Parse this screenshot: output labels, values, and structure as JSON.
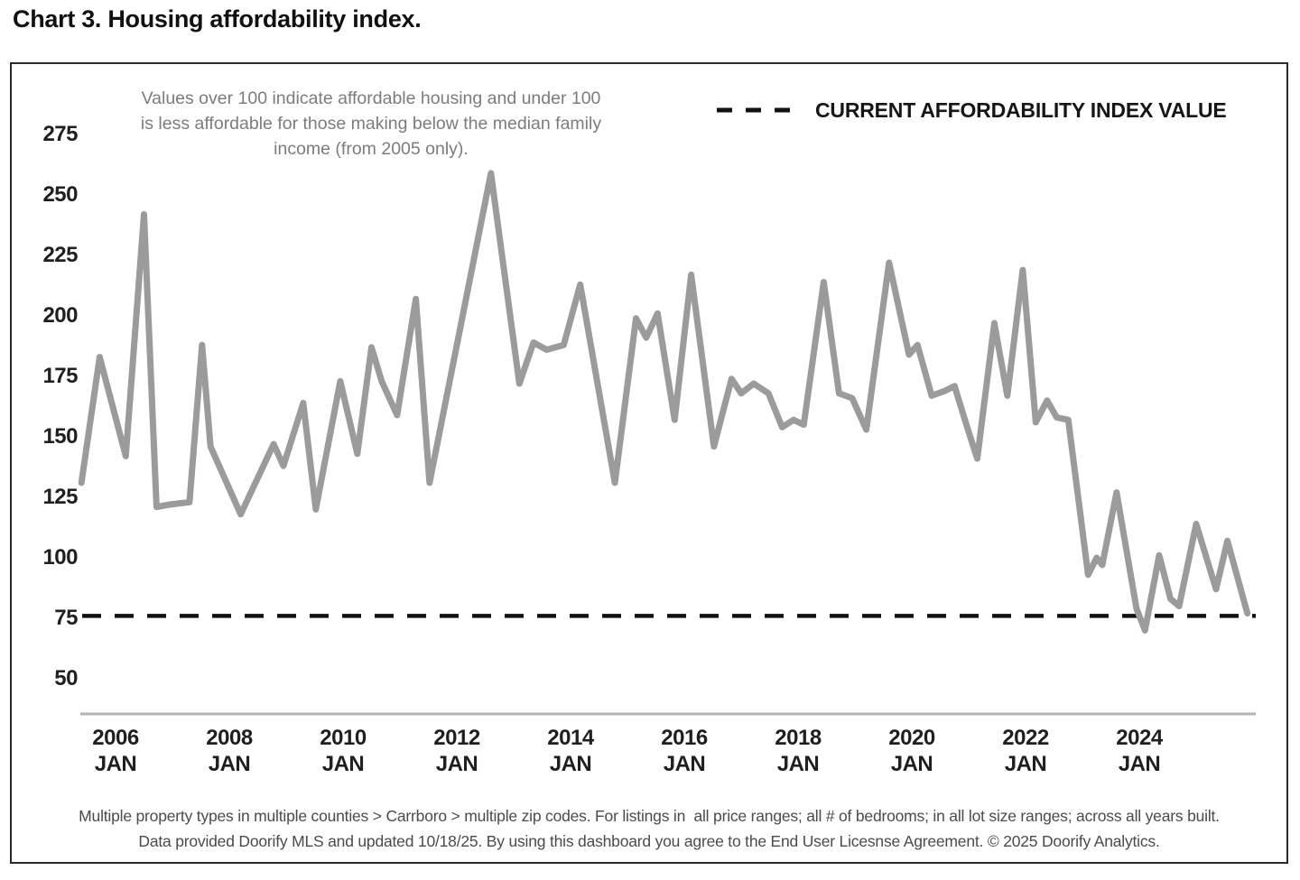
{
  "title": "Chart 3. Housing affordability index.",
  "annotation": {
    "line1": "Values over 100 indicate affordable housing and under 100",
    "line2": "is less affordable for those making below the median family",
    "line3": "income (from 2005 only)."
  },
  "legend": {
    "label": "CURRENT AFFORDABILITY INDEX VALUE"
  },
  "footer": {
    "line1": "Multiple property types in multiple counties > Carrboro > multiple zip codes. For listings in  all price ranges; all # of bedrooms; in all lot size ranges; across all years built.",
    "line2": "Data provided Doorify MLS and updated 10/18/25. By using this dashboard you agree to the End User Licesnse Agreement. © 2025 Doorify Analytics."
  },
  "colors": {
    "series_line": "#9b9b9b",
    "reference_line": "#111111",
    "axis_line": "#b3b3b3",
    "tick_text": "#1f1f1f"
  },
  "chart_data": {
    "type": "line",
    "title": "Chart 3. Housing affordability index.",
    "xlabel": "",
    "ylabel": "Housing affordability index",
    "grid": false,
    "legend_position": "top-right",
    "ylim": [
      40,
      290
    ],
    "x_range_years": [
      2005.4,
      2025.9
    ],
    "y_ticks": [
      275,
      250,
      225,
      200,
      175,
      150,
      125,
      100,
      75,
      50
    ],
    "x_ticks": [
      {
        "year": "2006",
        "month": "JAN"
      },
      {
        "year": "2008",
        "month": "JAN"
      },
      {
        "year": "2010",
        "month": "JAN"
      },
      {
        "year": "2012",
        "month": "JAN"
      },
      {
        "year": "2014",
        "month": "JAN"
      },
      {
        "year": "2016",
        "month": "JAN"
      },
      {
        "year": "2018",
        "month": "JAN"
      },
      {
        "year": "2020",
        "month": "JAN"
      },
      {
        "year": "2022",
        "month": "JAN"
      },
      {
        "year": "2024",
        "month": "JAN"
      }
    ],
    "reference_line": {
      "label": "CURRENT AFFORDABILITY INDEX VALUE",
      "value": 76,
      "style": "dashed"
    },
    "series": [
      {
        "name": "Housing affordability index",
        "points": [
          [
            2005.4,
            131
          ],
          [
            2005.72,
            183
          ],
          [
            2006.18,
            142
          ],
          [
            2006.5,
            242
          ],
          [
            2006.72,
            121
          ],
          [
            2006.95,
            122
          ],
          [
            2007.3,
            123
          ],
          [
            2007.52,
            188
          ],
          [
            2007.67,
            146
          ],
          [
            2008.2,
            118
          ],
          [
            2008.78,
            147
          ],
          [
            2008.95,
            138
          ],
          [
            2009.3,
            164
          ],
          [
            2009.52,
            120
          ],
          [
            2009.95,
            173
          ],
          [
            2010.25,
            143
          ],
          [
            2010.5,
            187
          ],
          [
            2010.68,
            173
          ],
          [
            2010.95,
            159
          ],
          [
            2011.28,
            207
          ],
          [
            2011.52,
            131
          ],
          [
            2012.6,
            259
          ],
          [
            2013.1,
            172
          ],
          [
            2013.35,
            189
          ],
          [
            2013.58,
            186
          ],
          [
            2013.88,
            188
          ],
          [
            2014.17,
            213
          ],
          [
            2014.78,
            131
          ],
          [
            2015.15,
            199
          ],
          [
            2015.33,
            191
          ],
          [
            2015.53,
            201
          ],
          [
            2015.83,
            157
          ],
          [
            2016.12,
            217
          ],
          [
            2016.52,
            146
          ],
          [
            2016.83,
            174
          ],
          [
            2017.0,
            168
          ],
          [
            2017.22,
            172
          ],
          [
            2017.48,
            168
          ],
          [
            2017.72,
            154
          ],
          [
            2017.92,
            157
          ],
          [
            2018.1,
            155
          ],
          [
            2018.45,
            214
          ],
          [
            2018.72,
            168
          ],
          [
            2018.95,
            166
          ],
          [
            2019.2,
            153
          ],
          [
            2019.6,
            222
          ],
          [
            2019.95,
            184
          ],
          [
            2020.1,
            188
          ],
          [
            2020.35,
            167
          ],
          [
            2020.58,
            169
          ],
          [
            2020.75,
            171
          ],
          [
            2021.0,
            152
          ],
          [
            2021.15,
            141
          ],
          [
            2021.45,
            197
          ],
          [
            2021.68,
            167
          ],
          [
            2021.95,
            219
          ],
          [
            2022.18,
            156
          ],
          [
            2022.38,
            165
          ],
          [
            2022.55,
            158
          ],
          [
            2022.75,
            157
          ],
          [
            2023.1,
            93
          ],
          [
            2023.25,
            100
          ],
          [
            2023.35,
            97
          ],
          [
            2023.6,
            127
          ],
          [
            2023.95,
            79
          ],
          [
            2024.1,
            70
          ],
          [
            2024.35,
            101
          ],
          [
            2024.55,
            83
          ],
          [
            2024.7,
            80
          ],
          [
            2025.0,
            114
          ],
          [
            2025.35,
            87
          ],
          [
            2025.55,
            107
          ],
          [
            2025.9,
            77
          ]
        ]
      }
    ]
  }
}
